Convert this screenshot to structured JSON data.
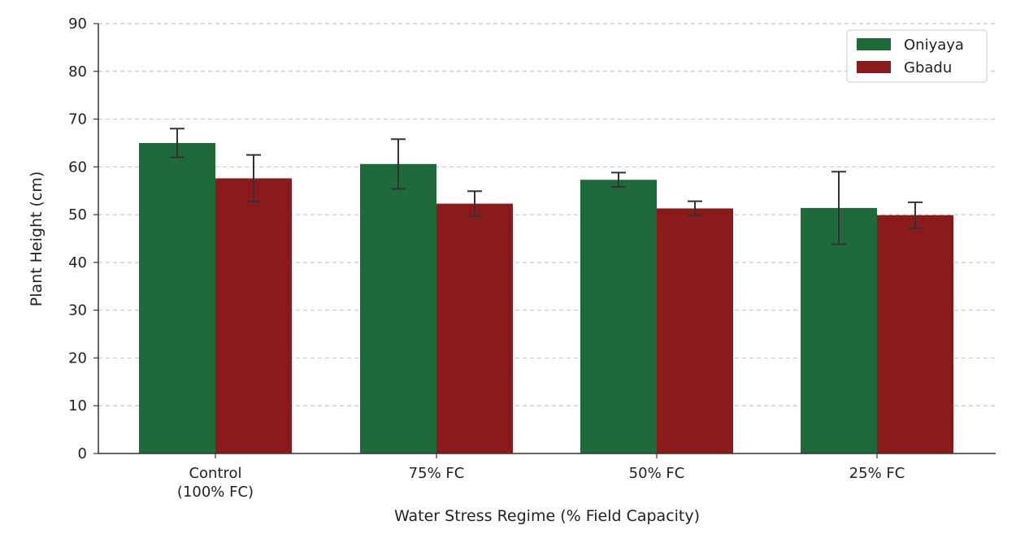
{
  "chart_data": {
    "type": "bar",
    "title": "",
    "xlabel": "Water Stress Regime (% Field Capacity)",
    "ylabel": "Plant Height (cm)",
    "ylim": [
      0,
      90
    ],
    "yticks": [
      0,
      10,
      20,
      30,
      40,
      50,
      60,
      70,
      80,
      90
    ],
    "grid": "y-dashed",
    "legend_position": "top-right",
    "categories": [
      [
        "Control",
        "(100% FC)"
      ],
      [
        "75% FC"
      ],
      [
        "50% FC"
      ],
      [
        "25% FC"
      ]
    ],
    "series": [
      {
        "name": "Oniyaya",
        "color": "#1f6a3b",
        "values": [
          65.0,
          60.6,
          57.3,
          51.4
        ],
        "errors": [
          3.0,
          5.2,
          1.5,
          7.6
        ]
      },
      {
        "name": "Gbadu",
        "color": "#8b1a1a",
        "values": [
          57.6,
          52.3,
          51.3,
          49.9
        ],
        "errors": [
          4.9,
          2.6,
          1.5,
          2.7
        ]
      }
    ]
  }
}
